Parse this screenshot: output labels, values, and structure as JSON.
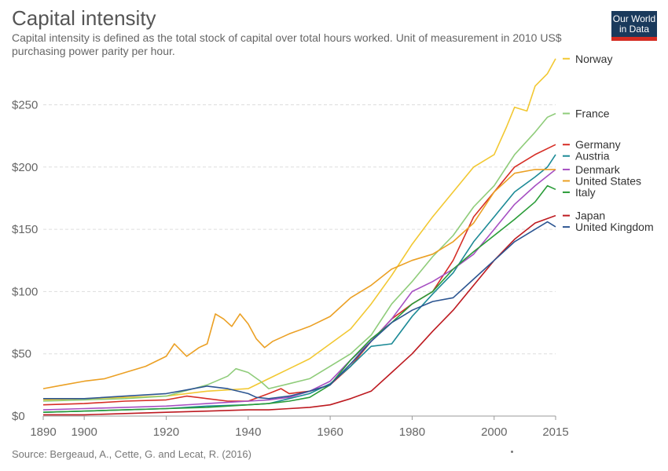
{
  "header": {
    "title": "Capital intensity",
    "subtitle": "Capital intensity is defined as the total stock of capital over total hours worked. Unit of measurement in 2010 US$ purchasing power parity per hour."
  },
  "logo": {
    "line1": "Our World",
    "line2": "in Data",
    "bg_color": "#1a3a5c",
    "accent_color": "#d42b21"
  },
  "footer": {
    "source": "Source: Bergeaud, A., Cette, G. and Lecat, R. (2016)"
  },
  "chart_data": {
    "type": "line",
    "title": "Capital intensity",
    "xlabel": "",
    "ylabel": "",
    "xlim": [
      1890,
      2015
    ],
    "ylim": [
      0,
      290
    ],
    "x_ticks": [
      1890,
      1900,
      1920,
      1940,
      1960,
      1980,
      2000,
      2015
    ],
    "y_ticks": [
      0,
      50,
      100,
      150,
      200,
      250
    ],
    "y_tick_labels": [
      "$0",
      "$50",
      "$100",
      "$150",
      "$200",
      "$250"
    ],
    "grid": "horizontal dashed",
    "legend": "right, labels at line ends",
    "series": [
      {
        "name": "Norway",
        "color": "#f2c832",
        "points": [
          [
            1890,
            13
          ],
          [
            1900,
            14
          ],
          [
            1910,
            15
          ],
          [
            1920,
            16
          ],
          [
            1930,
            20
          ],
          [
            1940,
            22
          ],
          [
            1945,
            30
          ],
          [
            1950,
            38
          ],
          [
            1955,
            46
          ],
          [
            1960,
            58
          ],
          [
            1965,
            70
          ],
          [
            1970,
            90
          ],
          [
            1975,
            113
          ],
          [
            1980,
            138
          ],
          [
            1985,
            160
          ],
          [
            1990,
            180
          ],
          [
            1995,
            200
          ],
          [
            2000,
            210
          ],
          [
            2003,
            232
          ],
          [
            2005,
            248
          ],
          [
            2008,
            245
          ],
          [
            2010,
            265
          ],
          [
            2013,
            275
          ],
          [
            2015,
            287
          ]
        ]
      },
      {
        "name": "France",
        "color": "#8fcc7a",
        "points": [
          [
            1890,
            12
          ],
          [
            1900,
            13
          ],
          [
            1910,
            14
          ],
          [
            1920,
            16
          ],
          [
            1930,
            25
          ],
          [
            1935,
            32
          ],
          [
            1937,
            38
          ],
          [
            1940,
            35
          ],
          [
            1943,
            28
          ],
          [
            1945,
            22
          ],
          [
            1950,
            26
          ],
          [
            1955,
            30
          ],
          [
            1960,
            40
          ],
          [
            1965,
            50
          ],
          [
            1970,
            65
          ],
          [
            1975,
            90
          ],
          [
            1980,
            108
          ],
          [
            1985,
            128
          ],
          [
            1990,
            145
          ],
          [
            1995,
            168
          ],
          [
            2000,
            185
          ],
          [
            2005,
            210
          ],
          [
            2010,
            228
          ],
          [
            2013,
            240
          ],
          [
            2015,
            243
          ]
        ]
      },
      {
        "name": "Germany",
        "color": "#d62e26",
        "points": [
          [
            1890,
            9
          ],
          [
            1900,
            10
          ],
          [
            1910,
            12
          ],
          [
            1920,
            13
          ],
          [
            1925,
            16
          ],
          [
            1930,
            14
          ],
          [
            1935,
            12
          ],
          [
            1940,
            12
          ],
          [
            1945,
            18
          ],
          [
            1948,
            22
          ],
          [
            1950,
            18
          ],
          [
            1955,
            20
          ],
          [
            1960,
            25
          ],
          [
            1965,
            40
          ],
          [
            1970,
            60
          ],
          [
            1975,
            78
          ],
          [
            1980,
            90
          ],
          [
            1985,
            100
          ],
          [
            1990,
            125
          ],
          [
            1995,
            160
          ],
          [
            2000,
            180
          ],
          [
            2005,
            200
          ],
          [
            2010,
            210
          ],
          [
            2015,
            218
          ]
        ]
      },
      {
        "name": "Austria",
        "color": "#1c8a96",
        "points": [
          [
            1890,
            3
          ],
          [
            1900,
            4
          ],
          [
            1910,
            5
          ],
          [
            1920,
            6
          ],
          [
            1930,
            8
          ],
          [
            1940,
            9
          ],
          [
            1945,
            10
          ],
          [
            1950,
            14
          ],
          [
            1955,
            18
          ],
          [
            1960,
            26
          ],
          [
            1965,
            40
          ],
          [
            1970,
            56
          ],
          [
            1975,
            58
          ],
          [
            1980,
            80
          ],
          [
            1985,
            98
          ],
          [
            1990,
            115
          ],
          [
            1995,
            140
          ],
          [
            2000,
            160
          ],
          [
            2005,
            180
          ],
          [
            2010,
            192
          ],
          [
            2013,
            200
          ],
          [
            2015,
            210
          ]
        ]
      },
      {
        "name": "Denmark",
        "color": "#a64fc2",
        "points": [
          [
            1890,
            5
          ],
          [
            1900,
            6
          ],
          [
            1910,
            7
          ],
          [
            1920,
            8
          ],
          [
            1930,
            10
          ],
          [
            1940,
            12
          ],
          [
            1945,
            13
          ],
          [
            1950,
            15
          ],
          [
            1955,
            20
          ],
          [
            1960,
            28
          ],
          [
            1965,
            45
          ],
          [
            1970,
            60
          ],
          [
            1975,
            78
          ],
          [
            1980,
            100
          ],
          [
            1985,
            108
          ],
          [
            1990,
            118
          ],
          [
            1995,
            130
          ],
          [
            2000,
            150
          ],
          [
            2005,
            170
          ],
          [
            2010,
            185
          ],
          [
            2015,
            198
          ]
        ]
      },
      {
        "name": "United States",
        "color": "#eba024",
        "points": [
          [
            1890,
            22
          ],
          [
            1895,
            25
          ],
          [
            1900,
            28
          ],
          [
            1905,
            30
          ],
          [
            1910,
            35
          ],
          [
            1915,
            40
          ],
          [
            1920,
            48
          ],
          [
            1922,
            58
          ],
          [
            1925,
            48
          ],
          [
            1928,
            55
          ],
          [
            1930,
            58
          ],
          [
            1932,
            82
          ],
          [
            1934,
            78
          ],
          [
            1936,
            72
          ],
          [
            1938,
            82
          ],
          [
            1940,
            74
          ],
          [
            1942,
            62
          ],
          [
            1944,
            55
          ],
          [
            1946,
            60
          ],
          [
            1950,
            66
          ],
          [
            1955,
            72
          ],
          [
            1960,
            80
          ],
          [
            1965,
            95
          ],
          [
            1970,
            105
          ],
          [
            1975,
            118
          ],
          [
            1980,
            125
          ],
          [
            1985,
            130
          ],
          [
            1990,
            140
          ],
          [
            1995,
            155
          ],
          [
            2000,
            180
          ],
          [
            2005,
            195
          ],
          [
            2010,
            198
          ],
          [
            2015,
            198
          ]
        ]
      },
      {
        "name": "Italy",
        "color": "#2a9c38",
        "points": [
          [
            1890,
            3
          ],
          [
            1900,
            4
          ],
          [
            1910,
            5
          ],
          [
            1920,
            6
          ],
          [
            1930,
            7
          ],
          [
            1940,
            9
          ],
          [
            1945,
            10
          ],
          [
            1950,
            12
          ],
          [
            1955,
            15
          ],
          [
            1960,
            25
          ],
          [
            1965,
            45
          ],
          [
            1970,
            62
          ],
          [
            1975,
            75
          ],
          [
            1980,
            90
          ],
          [
            1985,
            100
          ],
          [
            1990,
            118
          ],
          [
            1995,
            132
          ],
          [
            2000,
            145
          ],
          [
            2005,
            158
          ],
          [
            2010,
            172
          ],
          [
            2013,
            185
          ],
          [
            2015,
            182
          ]
        ]
      },
      {
        "name": "Japan",
        "color": "#bd1a20",
        "points": [
          [
            1890,
            1
          ],
          [
            1900,
            1
          ],
          [
            1910,
            2
          ],
          [
            1920,
            3
          ],
          [
            1930,
            4
          ],
          [
            1940,
            5
          ],
          [
            1945,
            5
          ],
          [
            1950,
            6
          ],
          [
            1955,
            7
          ],
          [
            1960,
            9
          ],
          [
            1965,
            14
          ],
          [
            1970,
            20
          ],
          [
            1975,
            35
          ],
          [
            1980,
            50
          ],
          [
            1985,
            68
          ],
          [
            1990,
            85
          ],
          [
            1995,
            105
          ],
          [
            2000,
            125
          ],
          [
            2005,
            142
          ],
          [
            2010,
            155
          ],
          [
            2015,
            161
          ]
        ]
      },
      {
        "name": "United Kingdom",
        "color": "#2c5591",
        "points": [
          [
            1890,
            14
          ],
          [
            1900,
            14
          ],
          [
            1910,
            16
          ],
          [
            1920,
            18
          ],
          [
            1925,
            21
          ],
          [
            1930,
            24
          ],
          [
            1935,
            22
          ],
          [
            1940,
            18
          ],
          [
            1942,
            15
          ],
          [
            1945,
            14
          ],
          [
            1950,
            16
          ],
          [
            1955,
            20
          ],
          [
            1960,
            25
          ],
          [
            1965,
            42
          ],
          [
            1970,
            60
          ],
          [
            1975,
            75
          ],
          [
            1980,
            85
          ],
          [
            1985,
            92
          ],
          [
            1990,
            95
          ],
          [
            1995,
            110
          ],
          [
            2000,
            125
          ],
          [
            2005,
            140
          ],
          [
            2010,
            150
          ],
          [
            2013,
            156
          ],
          [
            2015,
            152
          ]
        ]
      }
    ]
  }
}
